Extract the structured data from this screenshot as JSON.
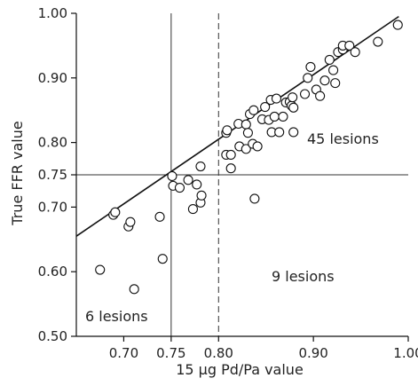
{
  "chart_data": {
    "type": "scatter",
    "title": "",
    "xlabel": "15 µg Pd/Pa value",
    "ylabel": "True FFR value",
    "xlim": [
      0.65,
      1.0
    ],
    "ylim": [
      0.5,
      1.0
    ],
    "xticks": [
      0.7,
      0.75,
      0.8,
      0.9,
      1.0
    ],
    "xtick_labels": [
      "0.70",
      "0.75",
      "0.80",
      "0.90",
      "1.00"
    ],
    "yticks": [
      0.5,
      0.6,
      0.7,
      0.75,
      0.8,
      0.9,
      1.0
    ],
    "ytick_labels": [
      "0.50",
      "0.60",
      "0.70",
      "0.75",
      "0.80",
      "0.90",
      "1.00"
    ],
    "grid": false,
    "reference_lines": {
      "vertical_solid_x": 0.75,
      "vertical_dashed_x": 0.8,
      "horizontal_solid_y": 0.75
    },
    "regression_line": {
      "x": [
        0.65,
        0.99
      ],
      "y": [
        0.655,
        0.995
      ]
    },
    "annotations": [
      "45 lesions",
      "9 lesions",
      "6 lesions"
    ],
    "points": [
      {
        "x": 0.675,
        "y": 0.603
      },
      {
        "x": 0.689,
        "y": 0.688
      },
      {
        "x": 0.691,
        "y": 0.692
      },
      {
        "x": 0.705,
        "y": 0.67
      },
      {
        "x": 0.707,
        "y": 0.677
      },
      {
        "x": 0.711,
        "y": 0.573
      },
      {
        "x": 0.738,
        "y": 0.685
      },
      {
        "x": 0.741,
        "y": 0.62
      },
      {
        "x": 0.751,
        "y": 0.748
      },
      {
        "x": 0.752,
        "y": 0.733
      },
      {
        "x": 0.759,
        "y": 0.73
      },
      {
        "x": 0.768,
        "y": 0.742
      },
      {
        "x": 0.773,
        "y": 0.697
      },
      {
        "x": 0.777,
        "y": 0.735
      },
      {
        "x": 0.781,
        "y": 0.707
      },
      {
        "x": 0.782,
        "y": 0.718
      },
      {
        "x": 0.781,
        "y": 0.763
      },
      {
        "x": 0.808,
        "y": 0.781
      },
      {
        "x": 0.808,
        "y": 0.815
      },
      {
        "x": 0.809,
        "y": 0.819
      },
      {
        "x": 0.813,
        "y": 0.781
      },
      {
        "x": 0.813,
        "y": 0.76
      },
      {
        "x": 0.821,
        "y": 0.829
      },
      {
        "x": 0.822,
        "y": 0.794
      },
      {
        "x": 0.829,
        "y": 0.828
      },
      {
        "x": 0.829,
        "y": 0.79
      },
      {
        "x": 0.831,
        "y": 0.815
      },
      {
        "x": 0.833,
        "y": 0.844
      },
      {
        "x": 0.836,
        "y": 0.798
      },
      {
        "x": 0.837,
        "y": 0.85
      },
      {
        "x": 0.838,
        "y": 0.713
      },
      {
        "x": 0.841,
        "y": 0.794
      },
      {
        "x": 0.846,
        "y": 0.836
      },
      {
        "x": 0.849,
        "y": 0.855
      },
      {
        "x": 0.853,
        "y": 0.835
      },
      {
        "x": 0.855,
        "y": 0.866
      },
      {
        "x": 0.856,
        "y": 0.816
      },
      {
        "x": 0.859,
        "y": 0.84
      },
      {
        "x": 0.861,
        "y": 0.868
      },
      {
        "x": 0.864,
        "y": 0.816
      },
      {
        "x": 0.868,
        "y": 0.84
      },
      {
        "x": 0.871,
        "y": 0.862
      },
      {
        "x": 0.875,
        "y": 0.863
      },
      {
        "x": 0.877,
        "y": 0.857
      },
      {
        "x": 0.878,
        "y": 0.87
      },
      {
        "x": 0.879,
        "y": 0.854
      },
      {
        "x": 0.879,
        "y": 0.816
      },
      {
        "x": 0.891,
        "y": 0.875
      },
      {
        "x": 0.894,
        "y": 0.9
      },
      {
        "x": 0.897,
        "y": 0.917
      },
      {
        "x": 0.903,
        "y": 0.882
      },
      {
        "x": 0.907,
        "y": 0.872
      },
      {
        "x": 0.912,
        "y": 0.896
      },
      {
        "x": 0.917,
        "y": 0.928
      },
      {
        "x": 0.921,
        "y": 0.912
      },
      {
        "x": 0.923,
        "y": 0.892
      },
      {
        "x": 0.926,
        "y": 0.94
      },
      {
        "x": 0.931,
        "y": 0.944
      },
      {
        "x": 0.931,
        "y": 0.95
      },
      {
        "x": 0.938,
        "y": 0.95
      },
      {
        "x": 0.944,
        "y": 0.94
      },
      {
        "x": 0.968,
        "y": 0.956
      },
      {
        "x": 0.989,
        "y": 0.982
      }
    ]
  }
}
